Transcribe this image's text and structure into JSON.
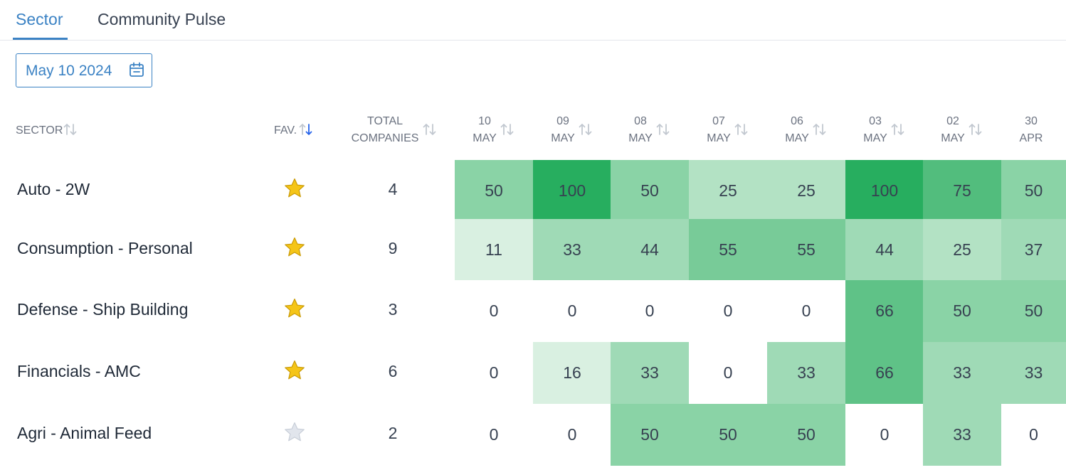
{
  "tabs": [
    {
      "label": "Sector",
      "active": true
    },
    {
      "label": "Community Pulse",
      "active": false
    }
  ],
  "date_picker": {
    "value": "May 10 2024",
    "icon": "calendar-icon"
  },
  "columns": {
    "sector": "SECTOR",
    "fav": "FAV.",
    "total_line1": "TOTAL",
    "total_line2": "COMPANIES",
    "dates": [
      {
        "day": "10",
        "month": "MAY"
      },
      {
        "day": "09",
        "month": "MAY"
      },
      {
        "day": "08",
        "month": "MAY"
      },
      {
        "day": "07",
        "month": "MAY"
      },
      {
        "day": "06",
        "month": "MAY"
      },
      {
        "day": "03",
        "month": "MAY"
      },
      {
        "day": "02",
        "month": "MAY"
      },
      {
        "day": "30",
        "month": "APR"
      }
    ]
  },
  "rows": [
    {
      "sector": "Auto - 2W",
      "favorite": true,
      "total": "4",
      "values": [
        "50",
        "100",
        "50",
        "25",
        "25",
        "100",
        "75",
        "50"
      ]
    },
    {
      "sector": "Consumption - Personal",
      "favorite": true,
      "total": "9",
      "values": [
        "11",
        "33",
        "44",
        "55",
        "55",
        "44",
        "25",
        "37"
      ]
    },
    {
      "sector": "Defense - Ship Building",
      "favorite": true,
      "total": "3",
      "values": [
        "0",
        "0",
        "0",
        "0",
        "0",
        "66",
        "50",
        "50"
      ]
    },
    {
      "sector": "Financials - AMC",
      "favorite": true,
      "total": "6",
      "values": [
        "0",
        "16",
        "33",
        "0",
        "33",
        "66",
        "33",
        "33"
      ]
    },
    {
      "sector": "Agri - Animal Feed",
      "favorite": false,
      "total": "2",
      "values": [
        "0",
        "0",
        "50",
        "50",
        "50",
        "0",
        "33",
        "0"
      ]
    }
  ],
  "colors": {
    "accent": "#3b82c4",
    "star_filled": "#f5c518",
    "star_empty": "#e1e5ec",
    "heat_0": "#ffffff",
    "heat_low": "#d9f0e1",
    "heat_25": "#b3e2c4",
    "heat_33": "#9fdab6",
    "heat_50": "#8ad3a6",
    "heat_66": "#5fc287",
    "heat_75": "#52bd7d",
    "heat_100": "#27ae5f"
  }
}
